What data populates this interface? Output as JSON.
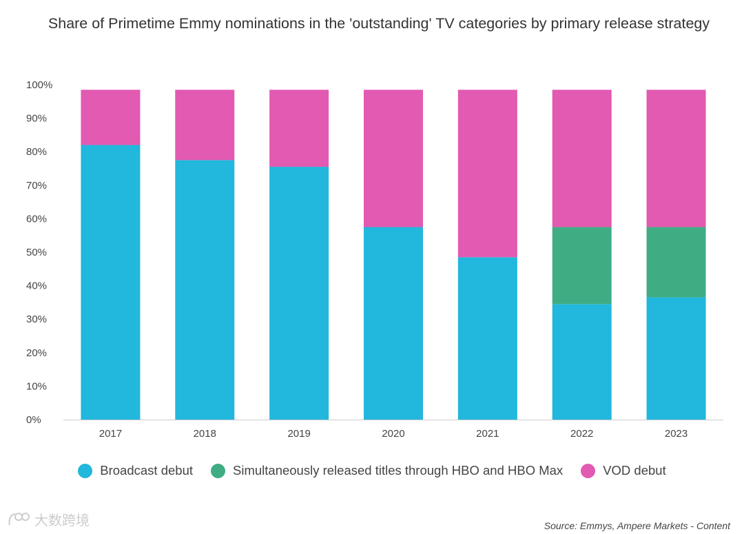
{
  "chart_data": {
    "type": "bar",
    "stacked": true,
    "title": "Share of Primetime Emmy nominations in the 'outstanding' TV categories by primary release strategy",
    "categories": [
      "2017",
      "2018",
      "2019",
      "2020",
      "2021",
      "2022",
      "2023"
    ],
    "series": [
      {
        "name": "Broadcast debut",
        "color": "#22b7dc",
        "values": [
          82,
          77.5,
          75.5,
          57.5,
          48.5,
          34.5,
          36.5
        ]
      },
      {
        "name": "Simultaneously released titles through HBO and HBO Max",
        "color": "#3fac84",
        "values": [
          0,
          0,
          0,
          0,
          0,
          23,
          21
        ]
      },
      {
        "name": "VOD debut",
        "color": "#e25ab1",
        "values": [
          16.5,
          21,
          23,
          41,
          50,
          41,
          41
        ]
      }
    ],
    "ylim": [
      0,
      100
    ],
    "yticks": [
      "0%",
      "10%",
      "20%",
      "30%",
      "40%",
      "50%",
      "60%",
      "70%",
      "80%",
      "90%",
      "100%"
    ],
    "xlabel": "",
    "ylabel": "",
    "grid": false,
    "legend_position": "bottom"
  },
  "source": "Source: Emmys, Ampere Markets - Content",
  "watermark": "大数跨境"
}
